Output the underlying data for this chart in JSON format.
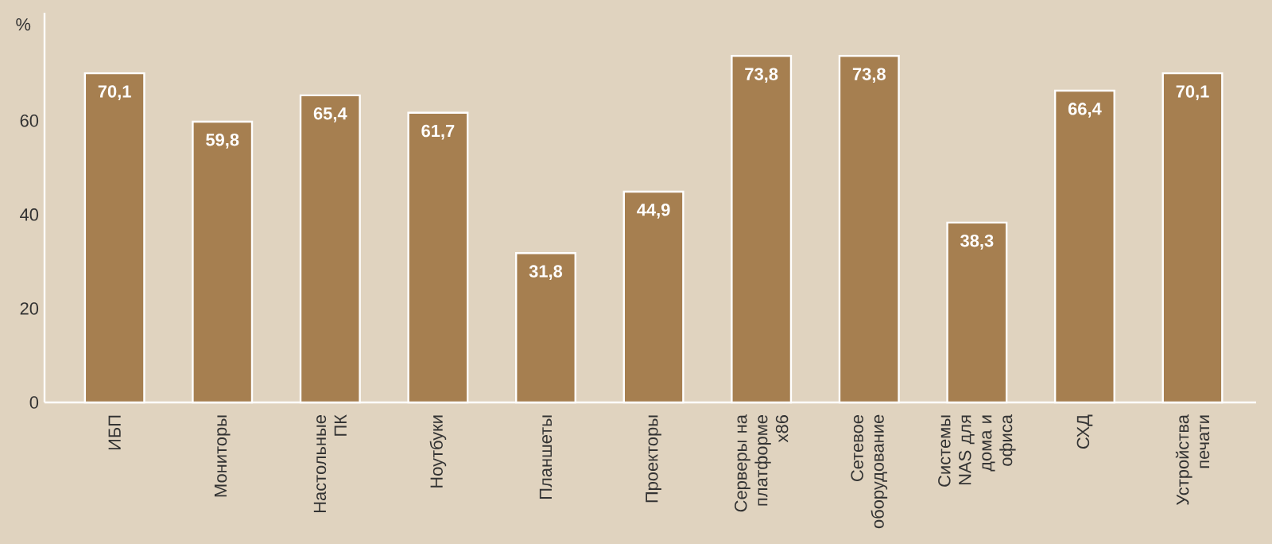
{
  "chart_data": {
    "type": "bar",
    "ylabel": "%",
    "categories": [
      "ИБП",
      "Мониторы",
      "Настольные ПК",
      "Ноутбуки",
      "Планшеты",
      "Проекторы",
      "Серверы на платформе x86",
      "Сетевое оборудование",
      "Системы NAS для дома и офиса",
      "СХД",
      "Устройства печати"
    ],
    "values": [
      70.1,
      59.8,
      65.4,
      61.7,
      31.8,
      44.9,
      73.8,
      73.8,
      38.3,
      66.4,
      70.1
    ],
    "value_labels": [
      "70,1",
      "59,8",
      "65,4",
      "61,7",
      "31,8",
      "44,9",
      "73,8",
      "73,8",
      "38,3",
      "66,4",
      "70,1"
    ],
    "color": "#a67f50",
    "ylim": [
      0,
      83
    ],
    "yticks": [
      0,
      20,
      40,
      60
    ]
  }
}
